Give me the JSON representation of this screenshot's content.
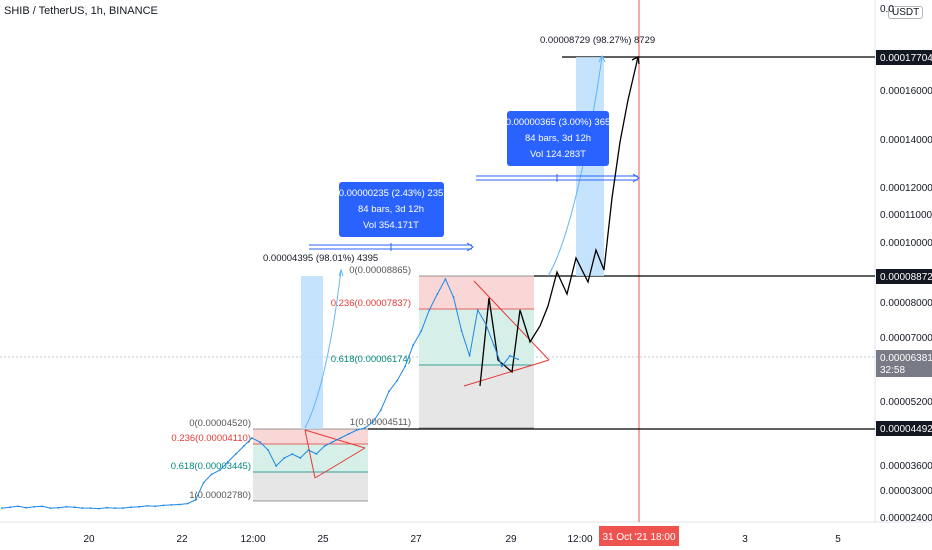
{
  "header": {
    "title": "SHIB / TetherUS, 1h, BINANCE",
    "currency": "USDT"
  },
  "chart_data": {
    "type": "line",
    "title": "SHIB / TetherUS, 1h, BINANCE",
    "symbol": "SHIB/USDT",
    "timeframe": "1h",
    "exchange": "BINANCE",
    "y_ticks": [
      "0.00016000",
      "0.00014000",
      "0.00012000",
      "0.00011000",
      "0.00010000",
      "0.00008000",
      "0.00007000",
      "0.00005200",
      "0.00003600",
      "0.00003000",
      "0.00002400"
    ],
    "y_top_partial": "0.0",
    "x_ticks": [
      "20",
      "22",
      "12:00",
      "25",
      "27",
      "29",
      "12:00",
      "3",
      "5"
    ],
    "x_highlight": "31 Oct '21  18:00",
    "price_labels": [
      {
        "value": "0.00017704",
        "type": "dark"
      },
      {
        "value": "0.00008872",
        "type": "dark"
      },
      {
        "value": "0.00006381",
        "type": "gray",
        "sub": "32:58"
      },
      {
        "value": "0.00004492",
        "type": "dark"
      }
    ],
    "fib_1": [
      {
        "level": "0(0.00004520)",
        "color": "#555555"
      },
      {
        "level": "0.236(0.00004110)",
        "color": "#e53935"
      },
      {
        "level": "0.618(0.00003445)",
        "color": "#00897b"
      },
      {
        "level": "1(0.00002780)",
        "color": "#555555"
      }
    ],
    "fib_2": [
      {
        "level": "0(0.00008865)",
        "color": "#555555"
      },
      {
        "level": "0.236(0.00007837)",
        "color": "#e53935"
      },
      {
        "level": "0.618(0.00006174)",
        "color": "#00897b"
      },
      {
        "level": "1(0.00004511)",
        "color": "#555555"
      }
    ],
    "measure_boxes": [
      {
        "lines": [
          "0.00000235 (2.43%) 235",
          "84 bars, 3d 12h",
          "Vol 354.171T"
        ]
      },
      {
        "lines": [
          "0.00000365 (3.00%) 365",
          "84 bars, 3d 12h",
          "Vol 124.283T"
        ]
      }
    ],
    "annotations": [
      "0.00004395 (98.01%) 4395",
      "0.00008729 (98.27%) 8729"
    ],
    "series": [
      {
        "values": [
          2.62e-05,
          2.64e-05,
          2.66e-05,
          2.63e-05,
          2.65e-05,
          2.66e-05,
          2.62e-05,
          2.63e-05,
          2.65e-05,
          2.64e-05,
          2.62e-05,
          2.62e-05,
          2.61e-05,
          2.63e-05,
          2.62e-05,
          2.62e-05,
          2.64e-05,
          2.65e-05,
          2.67e-05,
          2.66e-05,
          2.68e-05,
          2.69e-05,
          2.7e-05,
          2.72e-05,
          2.8e-05,
          3.2e-05,
          3.4e-05,
          3.5e-05,
          3.7e-05,
          3.9e-05,
          4.1e-05,
          4.3e-05,
          4.2e-05,
          4e-05,
          3.6e-05,
          3.8e-05,
          3.9e-05,
          3.8e-05,
          4e-05,
          3.9e-05,
          4.1e-05,
          4.2e-05,
          4.3e-05,
          4.4e-05,
          4.5e-05,
          4.55e-05,
          4.7e-05,
          5e-05,
          5.5e-05,
          5.8e-05,
          6.2e-05,
          6.8e-05,
          7.2e-05,
          7.8e-05,
          8.3e-05,
          8.8e-05,
          8.2e-05,
          7.2e-05,
          6.5e-05,
          7.8e-05,
          7.4e-05,
          6.8e-05,
          6.2e-05,
          6.5e-05,
          6.4e-05
        ]
      }
    ]
  }
}
